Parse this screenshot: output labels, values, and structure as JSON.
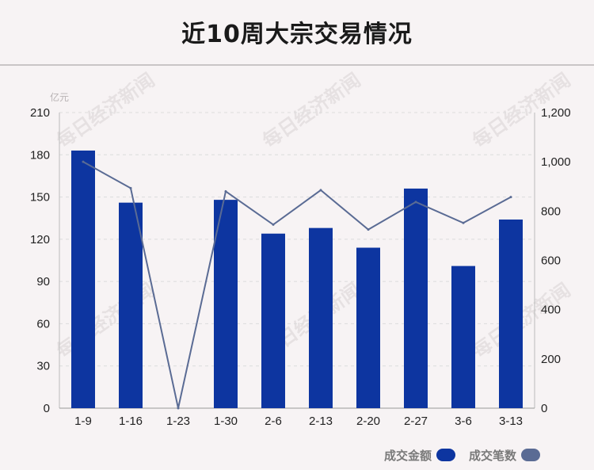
{
  "title": "近10周大宗交易情况",
  "unit_left": "亿元",
  "watermark_text": "每日经济新闻",
  "legend": {
    "amount_label": "成交金额",
    "count_label": "成交笔数"
  },
  "colors": {
    "bar": "#0d35a0",
    "line": "#5a6b94",
    "grid": "#dcdcdc"
  },
  "chart_data": {
    "type": "bar",
    "categories": [
      "1-9",
      "1-16",
      "1-23",
      "1-30",
      "2-6",
      "2-13",
      "2-20",
      "2-27",
      "3-6",
      "3-13"
    ],
    "series": [
      {
        "name": "成交金额",
        "type": "bar",
        "axis": "left",
        "values": [
          183,
          146,
          0,
          148,
          124,
          128,
          114,
          156,
          101,
          134
        ]
      },
      {
        "name": "成交笔数",
        "type": "line",
        "axis": "right",
        "values": [
          1000,
          893,
          0,
          880,
          745,
          885,
          725,
          837,
          752,
          857
        ]
      }
    ],
    "ylim_left": [
      0,
      210
    ],
    "yticks_left": [
      "0",
      "30",
      "60",
      "90",
      "120",
      "150",
      "180",
      "210"
    ],
    "ylim_right": [
      0,
      1200
    ],
    "yticks_right": [
      "0",
      "200",
      "400",
      "600",
      "800",
      "1,000",
      "1,200"
    ],
    "grid": true,
    "legend_position": "bottom-right"
  }
}
